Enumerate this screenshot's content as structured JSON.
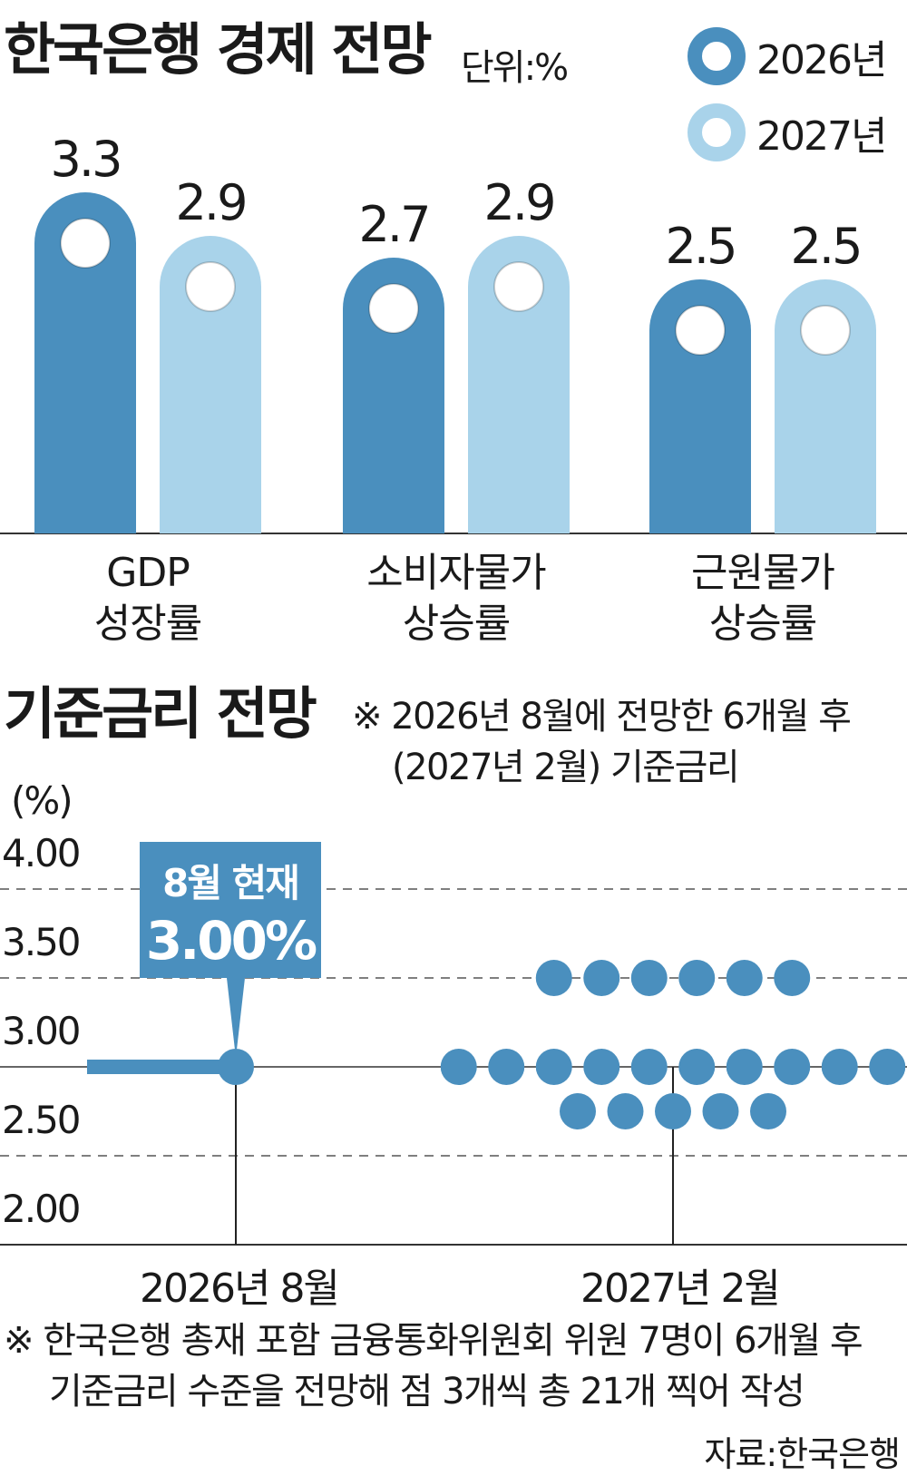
{
  "top_title": "한국은행 경제 전망",
  "top_unit": "단위:%",
  "legend": [
    {
      "label": "2026년",
      "color": "#4a8fbe"
    },
    {
      "label": "2027년",
      "color": "#a9d3ea"
    }
  ],
  "chart_data": [
    {
      "type": "bar",
      "title": "한국은행 경제 전망",
      "unit": "단위:%",
      "categories": [
        "GDP 성장률",
        "소비자물가 상승률",
        "근원물가 상승률"
      ],
      "category_lines": [
        [
          "GDP",
          "성장률"
        ],
        [
          "소비자물가",
          "상승률"
        ],
        [
          "근원물가",
          "상승률"
        ]
      ],
      "series": [
        {
          "name": "2026년",
          "values": [
            3.3,
            2.7,
            2.5
          ],
          "labels": [
            "3.3",
            "2.7",
            "2.5"
          ],
          "color": "#4a8fbe"
        },
        {
          "name": "2027년",
          "values": [
            2.9,
            2.9,
            2.5
          ],
          "labels": [
            "2.9",
            "2.9",
            "2.5"
          ],
          "color": "#a9d3ea"
        }
      ],
      "legend_position": "top-right"
    },
    {
      "type": "scatter",
      "title": "기준금리 전망",
      "ylabel": "(%)",
      "ylim": [
        2.0,
        4.0
      ],
      "yticks": [
        "2.00",
        "2.50",
        "3.00",
        "3.50",
        "4.00"
      ],
      "x_categories": [
        "2026년 8월",
        "2027년 2월"
      ],
      "current": {
        "x": "2026년 8월",
        "y": 3.0
      },
      "dots": [
        {
          "x": "2027년 2월",
          "y": 3.5,
          "count": 6
        },
        {
          "x": "2027년 2월",
          "y": 3.0,
          "count": 10
        },
        {
          "x": "2027년 2월",
          "y": 2.75,
          "count": 5
        }
      ],
      "dot_color": "#4a8fbe",
      "grid": "dashed"
    }
  ],
  "rate_title": "기준금리 전망",
  "rate_note": [
    "※ 2026년 8월에 전망한 6개월 후",
    "(2027년 2월) 기준금리"
  ],
  "callout": {
    "line1": "8월 현재",
    "line2": "3.00%"
  },
  "footnote": [
    "※ 한국은행 총재 포함 금융통화위원회 위원 7명이 6개월 후",
    "기준금리 수준을 전망해 점 3개씩 총 21개 찍어 작성"
  ],
  "source": "자료:한국은행"
}
